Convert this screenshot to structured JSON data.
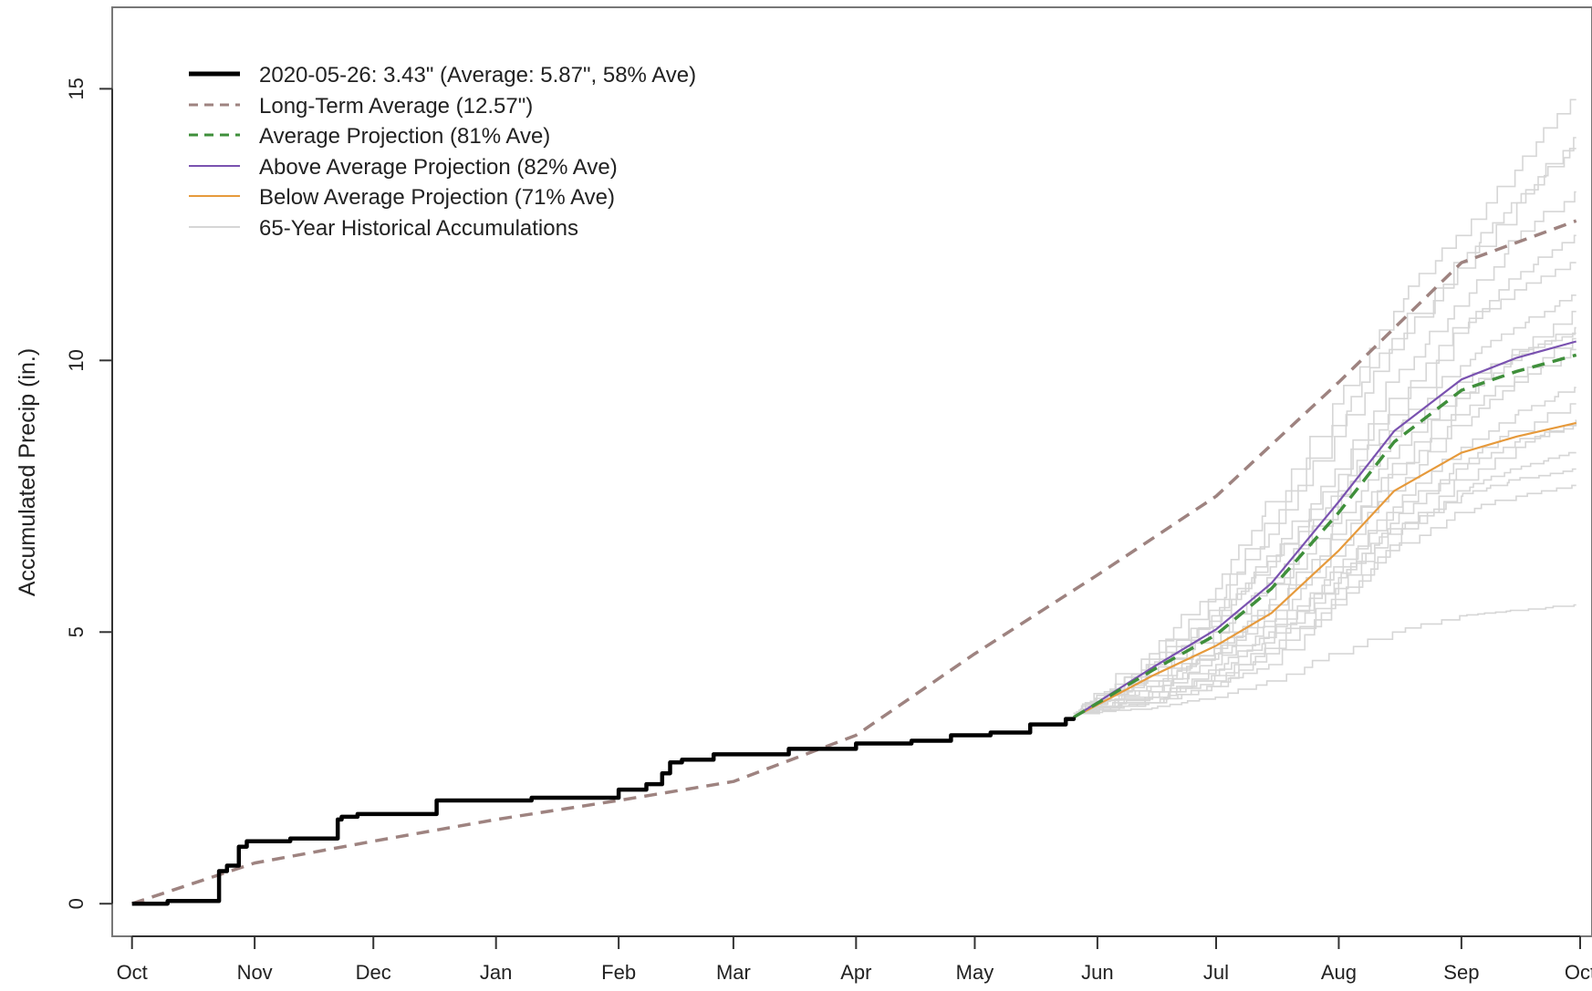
{
  "chart_data": {
    "type": "line",
    "title": "",
    "xlabel": "",
    "ylabel": "Accumulated Precip (in.)",
    "x_ticks": [
      "Oct",
      "Nov",
      "Dec",
      "Jan",
      "Feb",
      "Mar",
      "Apr",
      "May",
      "Jun",
      "Jul",
      "Aug",
      "Sep",
      "Oct"
    ],
    "y_ticks": [
      "0",
      "5",
      "10",
      "15"
    ],
    "ylim": [
      -0.6,
      16.5
    ],
    "xlim": [
      "2019-09-26",
      "2020-10-04"
    ],
    "grid": false,
    "legend_position": "top-left",
    "colors": {
      "observed": "#000000",
      "long_term_average": "#9e8380",
      "average_projection": "#3f8f3b",
      "above_average_projection": "#7a52b0",
      "below_average_projection": "#e69a3c",
      "historical": "#d6d6d6"
    },
    "series": [
      {
        "name": "2020-05-26: 3.43\" (Average: 5.87\", 58% Ave)",
        "style": "solid-thick",
        "x": [
          "2019-10-01",
          "2019-10-10",
          "2019-10-21",
          "2019-10-23",
          "2019-10-25",
          "2019-10-28",
          "2019-10-30",
          "2019-11-01",
          "2019-11-05",
          "2019-11-10",
          "2019-11-20",
          "2019-11-22",
          "2019-11-23",
          "2019-11-24",
          "2019-11-27",
          "2019-12-01",
          "2019-12-15",
          "2019-12-17",
          "2019-12-20",
          "2020-01-10",
          "2020-01-31",
          "2020-02-01",
          "2020-02-08",
          "2020-02-12",
          "2020-02-14",
          "2020-02-17",
          "2020-02-25",
          "2020-03-01",
          "2020-03-12",
          "2020-03-15",
          "2020-04-01",
          "2020-04-10",
          "2020-04-15",
          "2020-04-25",
          "2020-05-05",
          "2020-05-13",
          "2020-05-15",
          "2020-05-20",
          "2020-05-24",
          "2020-05-26"
        ],
        "y": [
          0.0,
          0.05,
          0.05,
          0.6,
          0.7,
          1.05,
          1.15,
          1.15,
          1.15,
          1.2,
          1.2,
          1.55,
          1.6,
          1.6,
          1.65,
          1.65,
          1.65,
          1.9,
          1.9,
          1.95,
          1.95,
          2.1,
          2.2,
          2.4,
          2.6,
          2.65,
          2.75,
          2.75,
          2.75,
          2.85,
          2.95,
          2.95,
          3.0,
          3.1,
          3.15,
          3.15,
          3.3,
          3.3,
          3.4,
          3.43
        ]
      },
      {
        "name": "Long-Term Average (12.57\")",
        "style": "dashed",
        "x": [
          "2019-10-01",
          "2019-11-01",
          "2019-12-01",
          "2020-01-01",
          "2020-02-01",
          "2020-03-01",
          "2020-04-01",
          "2020-05-01",
          "2020-06-01",
          "2020-07-01",
          "2020-08-01",
          "2020-09-01",
          "2020-09-30"
        ],
        "y": [
          0.0,
          0.75,
          1.15,
          1.55,
          1.9,
          2.25,
          3.1,
          4.6,
          6.05,
          7.5,
          9.6,
          11.8,
          12.57
        ]
      },
      {
        "name": "Average Projection (81% Ave)",
        "style": "dashed",
        "x": [
          "2020-05-26",
          "2020-06-15",
          "2020-07-01",
          "2020-07-15",
          "2020-08-01",
          "2020-08-15",
          "2020-09-01",
          "2020-09-15",
          "2020-09-30"
        ],
        "y": [
          3.43,
          4.3,
          4.95,
          5.8,
          7.2,
          8.5,
          9.45,
          9.8,
          10.1
        ]
      },
      {
        "name": "Above Average Projection (82% Ave)",
        "style": "solid",
        "x": [
          "2020-05-26",
          "2020-06-15",
          "2020-07-01",
          "2020-07-15",
          "2020-08-01",
          "2020-08-15",
          "2020-09-01",
          "2020-09-15",
          "2020-09-30"
        ],
        "y": [
          3.43,
          4.35,
          5.05,
          5.9,
          7.4,
          8.7,
          9.65,
          10.05,
          10.35
        ]
      },
      {
        "name": "Below Average Projection (71% Ave)",
        "style": "solid",
        "x": [
          "2020-05-26",
          "2020-06-15",
          "2020-07-01",
          "2020-07-15",
          "2020-08-01",
          "2020-08-15",
          "2020-09-01",
          "2020-09-15",
          "2020-09-30"
        ],
        "y": [
          3.43,
          4.2,
          4.75,
          5.35,
          6.5,
          7.6,
          8.3,
          8.6,
          8.85
        ]
      },
      {
        "name": "65-Year Historical Accumulations",
        "style": "thin-light",
        "x": [
          "2020-05-26",
          "2020-06-15",
          "2020-07-01",
          "2020-07-15",
          "2020-08-01",
          "2020-08-15",
          "2020-09-01",
          "2020-09-15",
          "2020-09-30"
        ],
        "y": [
          3.43,
          4.3,
          4.95,
          5.8,
          7.2,
          8.5,
          9.45,
          9.8,
          10.1
        ]
      }
    ],
    "historical_traces": [
      [
        3.5,
        3.8,
        4.2,
        4.9,
        6.1,
        7.3,
        8.4,
        9.0,
        9.5
      ],
      [
        3.5,
        3.7,
        4.0,
        4.4,
        5.5,
        6.6,
        7.8,
        8.4,
        8.9
      ],
      [
        3.5,
        4.0,
        4.6,
        5.6,
        7.0,
        8.2,
        9.4,
        10.2,
        10.9
      ],
      [
        3.5,
        4.4,
        5.4,
        6.8,
        8.6,
        10.2,
        11.7,
        12.9,
        13.9
      ],
      [
        3.5,
        3.6,
        3.8,
        4.1,
        4.6,
        5.0,
        5.3,
        5.4,
        5.5
      ],
      [
        3.5,
        4.2,
        5.0,
        6.0,
        7.6,
        9.0,
        10.5,
        11.5,
        12.3
      ],
      [
        3.5,
        3.9,
        4.5,
        5.2,
        6.4,
        7.6,
        8.8,
        9.6,
        10.2
      ],
      [
        3.5,
        4.6,
        5.8,
        7.4,
        9.2,
        10.9,
        12.3,
        13.5,
        14.8
      ],
      [
        3.5,
        3.7,
        4.1,
        4.7,
        5.8,
        6.8,
        7.6,
        8.0,
        8.3
      ],
      [
        3.5,
        4.1,
        4.8,
        5.9,
        7.3,
        8.7,
        9.9,
        10.6,
        11.2
      ],
      [
        3.5,
        3.8,
        4.3,
        5.0,
        6.2,
        7.2,
        8.0,
        8.5,
        8.8
      ],
      [
        3.5,
        4.3,
        5.2,
        6.4,
        8.0,
        9.6,
        11.0,
        12.2,
        13.1
      ],
      [
        3.5,
        3.9,
        4.4,
        5.1,
        6.0,
        6.9,
        7.5,
        7.8,
        8.0
      ],
      [
        3.5,
        4.5,
        5.6,
        7.0,
        8.8,
        10.4,
        11.8,
        12.9,
        14.1
      ],
      [
        3.5,
        4.0,
        4.7,
        5.5,
        6.7,
        7.9,
        9.0,
        9.7,
        10.4
      ],
      [
        3.5,
        3.7,
        4.0,
        4.6,
        5.6,
        6.5,
        7.2,
        7.5,
        7.7
      ],
      [
        3.5,
        4.2,
        5.1,
        6.3,
        7.9,
        9.3,
        10.6,
        11.3,
        11.8
      ],
      [
        3.5,
        3.9,
        4.6,
        5.4,
        6.8,
        8.1,
        9.3,
        10.0,
        10.6
      ],
      [
        3.5,
        4.4,
        5.3,
        6.2,
        7.5,
        8.6,
        9.6,
        10.1,
        10.5
      ],
      [
        3.5,
        3.8,
        4.2,
        4.8,
        5.9,
        7.0,
        8.1,
        8.7,
        9.2
      ]
    ]
  },
  "legend": {
    "items": [
      {
        "label": "2020-05-26: 3.43\" (Average: 5.87\", 58% Ave)"
      },
      {
        "label": "Long-Term Average (12.57\")"
      },
      {
        "label": "Average Projection (81% Ave)"
      },
      {
        "label": "Above Average Projection (82% Ave)"
      },
      {
        "label": "Below Average Projection (71% Ave)"
      },
      {
        "label": "65-Year Historical Accumulations"
      }
    ]
  }
}
